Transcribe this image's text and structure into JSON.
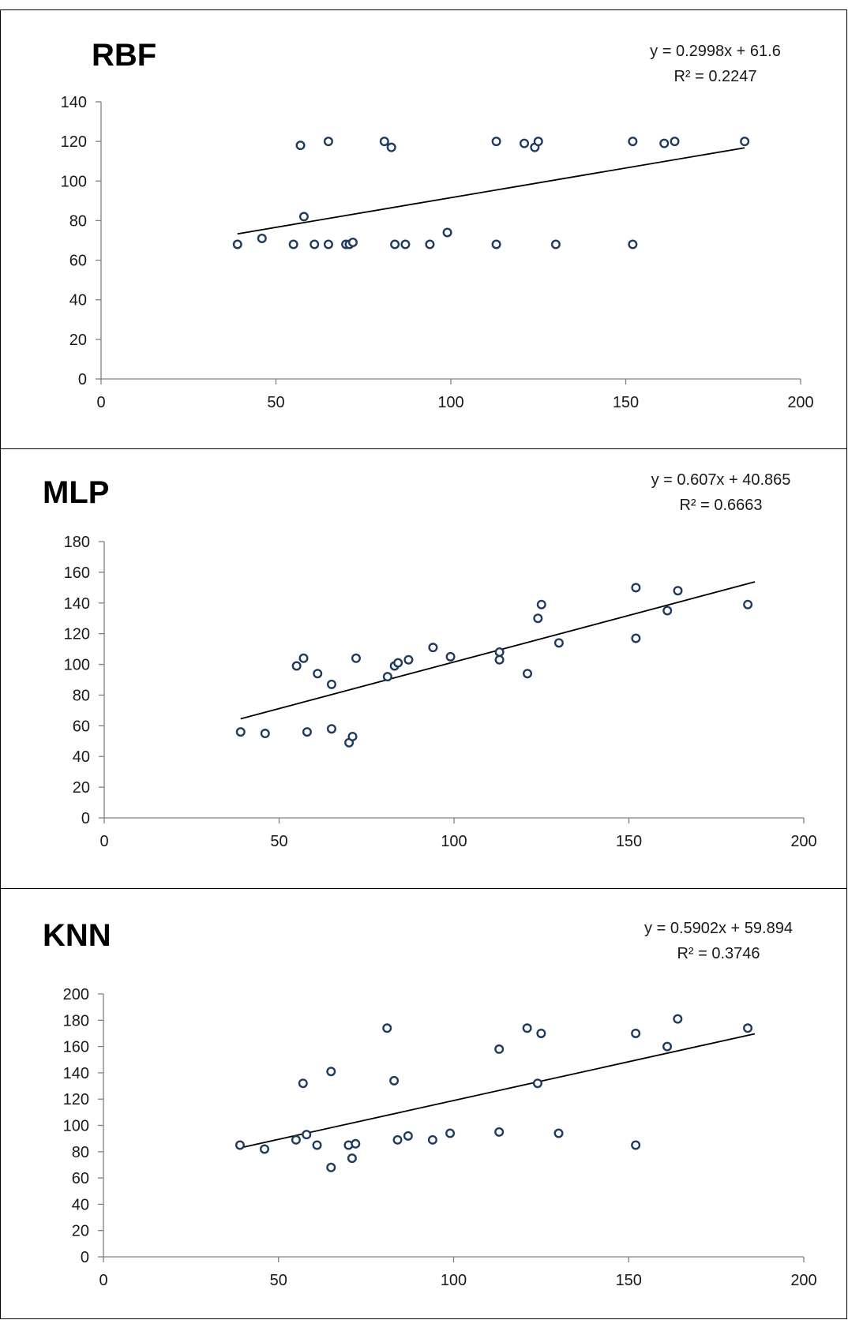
{
  "chart_data": [
    {
      "type": "scatter",
      "title": "RBF",
      "trendline_equation": "y = 0.2998x + 61.6",
      "r_squared_label": "R² = 0.2247",
      "trendline": {
        "slope": 0.2998,
        "intercept": 61.6,
        "x_range": [
          39,
          184
        ]
      },
      "xlim": [
        0,
        200
      ],
      "ylim": [
        0,
        140
      ],
      "x_ticks": [
        0,
        50,
        100,
        150,
        200
      ],
      "y_ticks": [
        0,
        20,
        40,
        60,
        80,
        100,
        120,
        140
      ],
      "grid": false,
      "marker_color": "#1f3a5f",
      "points": [
        [
          39,
          68
        ],
        [
          46,
          71
        ],
        [
          55,
          68
        ],
        [
          57,
          118
        ],
        [
          58,
          82
        ],
        [
          61,
          68
        ],
        [
          65,
          68
        ],
        [
          65,
          120
        ],
        [
          70,
          68
        ],
        [
          71,
          68
        ],
        [
          72,
          69
        ],
        [
          81,
          120
        ],
        [
          83,
          117
        ],
        [
          84,
          68
        ],
        [
          87,
          68
        ],
        [
          94,
          68
        ],
        [
          99,
          74
        ],
        [
          113,
          68
        ],
        [
          113,
          120
        ],
        [
          121,
          119
        ],
        [
          124,
          117
        ],
        [
          125,
          120
        ],
        [
          130,
          68
        ],
        [
          152,
          120
        ],
        [
          152,
          68
        ],
        [
          161,
          119
        ],
        [
          164,
          120
        ],
        [
          184,
          120
        ]
      ]
    },
    {
      "type": "scatter",
      "title": "MLP",
      "trendline_equation": "y = 0.607x + 40.865",
      "r_squared_label": "R² = 0.6663",
      "trendline": {
        "slope": 0.607,
        "intercept": 40.865,
        "x_range": [
          39,
          186
        ]
      },
      "xlim": [
        0,
        200
      ],
      "ylim": [
        0,
        180
      ],
      "x_ticks": [
        0,
        50,
        100,
        150,
        200
      ],
      "y_ticks": [
        0,
        20,
        40,
        60,
        80,
        100,
        120,
        140,
        160,
        180
      ],
      "grid": false,
      "marker_color": "#1f3a5f",
      "points": [
        [
          39,
          56
        ],
        [
          46,
          55
        ],
        [
          55,
          99
        ],
        [
          57,
          104
        ],
        [
          58,
          56
        ],
        [
          61,
          94
        ],
        [
          65,
          87
        ],
        [
          65,
          58
        ],
        [
          70,
          49
        ],
        [
          71,
          53
        ],
        [
          72,
          104
        ],
        [
          81,
          92
        ],
        [
          83,
          99
        ],
        [
          84,
          101
        ],
        [
          87,
          103
        ],
        [
          94,
          111
        ],
        [
          99,
          105
        ],
        [
          113,
          108
        ],
        [
          113,
          103
        ],
        [
          121,
          94
        ],
        [
          124,
          130
        ],
        [
          125,
          139
        ],
        [
          130,
          114
        ],
        [
          152,
          150
        ],
        [
          152,
          117
        ],
        [
          161,
          135
        ],
        [
          164,
          148
        ],
        [
          184,
          139
        ]
      ]
    },
    {
      "type": "scatter",
      "title": "KNN",
      "trendline_equation": "y = 0.5902x + 59.894",
      "r_squared_label": "R² = 0.3746",
      "trendline": {
        "slope": 0.5902,
        "intercept": 59.894,
        "x_range": [
          39,
          186
        ]
      },
      "xlim": [
        0,
        200
      ],
      "ylim": [
        0,
        200
      ],
      "x_ticks": [
        0,
        50,
        100,
        150,
        200
      ],
      "y_ticks": [
        0,
        20,
        40,
        60,
        80,
        100,
        120,
        140,
        160,
        180,
        200
      ],
      "grid": false,
      "marker_color": "#1f3a5f",
      "points": [
        [
          39,
          85
        ],
        [
          46,
          82
        ],
        [
          55,
          89
        ],
        [
          57,
          132
        ],
        [
          58,
          93
        ],
        [
          61,
          85
        ],
        [
          65,
          141
        ],
        [
          65,
          68
        ],
        [
          70,
          85
        ],
        [
          71,
          75
        ],
        [
          72,
          86
        ],
        [
          81,
          174
        ],
        [
          83,
          134
        ],
        [
          84,
          89
        ],
        [
          87,
          92
        ],
        [
          94,
          89
        ],
        [
          99,
          94
        ],
        [
          113,
          158
        ],
        [
          113,
          95
        ],
        [
          121,
          174
        ],
        [
          124,
          132
        ],
        [
          125,
          170
        ],
        [
          130,
          94
        ],
        [
          152,
          170
        ],
        [
          152,
          85
        ],
        [
          161,
          160
        ],
        [
          164,
          181
        ],
        [
          184,
          174
        ]
      ]
    }
  ]
}
